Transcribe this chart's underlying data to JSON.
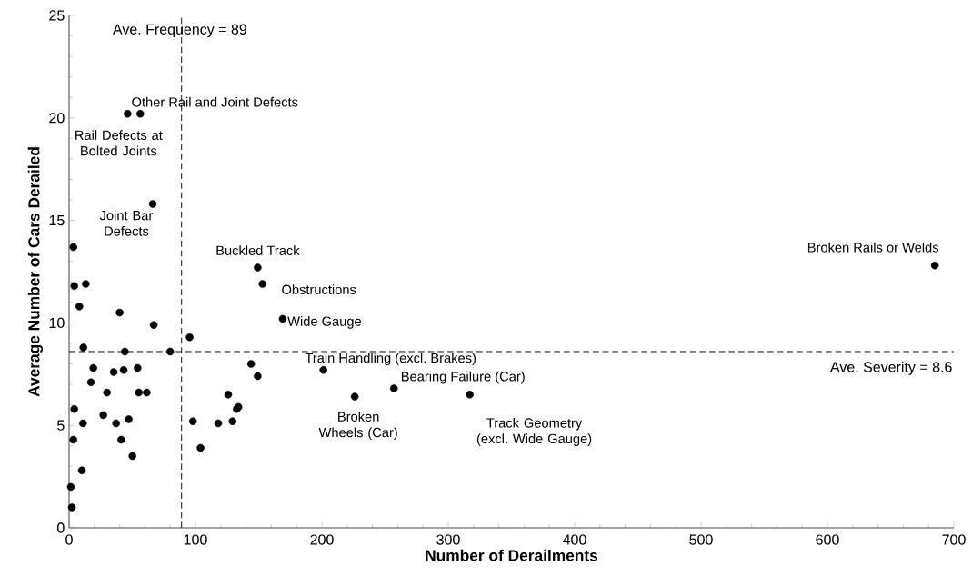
{
  "chart_data": {
    "type": "scatter",
    "xlabel": "Number of Derailments",
    "ylabel": "Average Number of Cars Derailed",
    "xlim": [
      0,
      700
    ],
    "ylim": [
      0,
      25
    ],
    "xticks": [
      0,
      100,
      200,
      300,
      400,
      500,
      600,
      700
    ],
    "yticks": [
      0,
      5,
      10,
      15,
      20,
      25
    ],
    "grid": false,
    "marker": "circle",
    "series": [
      {
        "color": "#000000",
        "x": [
          4.1,
          13.2,
          8.1,
          40,
          67,
          95.4,
          11.3,
          44.1,
          80,
          19.2,
          35.3,
          43.2,
          54.2,
          17.3,
          30,
          55.2,
          61.4,
          144,
          149.2,
          125.9,
          134,
          132.6,
          4.1,
          27.1,
          11,
          37.2,
          47.2,
          98,
          118,
          129.3,
          3.4,
          41.2,
          104,
          50.1,
          10.1,
          1.4,
          2.2,
          46.3,
          56.3,
          66.2,
          3.4,
          149.2,
          153,
          169,
          201.2,
          226,
          257,
          317,
          685
        ],
        "values": [
          11.8,
          11.9,
          10.8,
          10.5,
          9.9,
          9.3,
          8.8,
          8.6,
          8.6,
          7.8,
          7.6,
          7.7,
          7.8,
          7.1,
          6.6,
          6.6,
          6.6,
          8.0,
          7.4,
          6.5,
          5.9,
          5.8,
          5.8,
          5.5,
          5.1,
          5.1,
          5.3,
          5.2,
          5.1,
          5.2,
          4.3,
          4.3,
          3.9,
          3.5,
          2.8,
          2.0,
          1.0,
          20.2,
          20.2,
          15.8,
          13.7,
          12.7,
          11.9,
          10.2,
          7.7,
          6.4,
          6.8,
          6.5,
          12.8
        ]
      }
    ],
    "ref_lines": [
      {
        "axis": "x",
        "value": 89,
        "label": "Ave. Frequency = 89",
        "line_style": "dashed"
      },
      {
        "axis": "y",
        "value": 8.6,
        "label": "Ave. Severity = 8.6",
        "line_style": "dashed"
      }
    ],
    "annotations": [
      {
        "text": "Other Rail and Joint Defects",
        "x": 56.3,
        "y": 20.2
      },
      {
        "text": "Rail Defects at Bolted Joints",
        "x": 46.3,
        "y": 20.2
      },
      {
        "text": "Joint Bar Defects",
        "x": 66.2,
        "y": 15.8
      },
      {
        "text": "Buckled Track",
        "x": 149.2,
        "y": 12.7
      },
      {
        "text": "Obstructions",
        "x": 153,
        "y": 11.9
      },
      {
        "text": "Wide Gauge",
        "x": 169,
        "y": 10.2
      },
      {
        "text": "Train Handling (excl. Brakes)",
        "x": 201.2,
        "y": 7.7
      },
      {
        "text": "Broken Wheels (Car)",
        "x": 226,
        "y": 6.4
      },
      {
        "text": "Bearing Failure (Car)",
        "x": 257,
        "y": 6.8
      },
      {
        "text": "Track Geometry (excl. Wide Gauge)",
        "x": 317,
        "y": 6.5
      },
      {
        "text": "Broken Rails or Welds",
        "x": 685,
        "y": 12.8
      }
    ]
  }
}
